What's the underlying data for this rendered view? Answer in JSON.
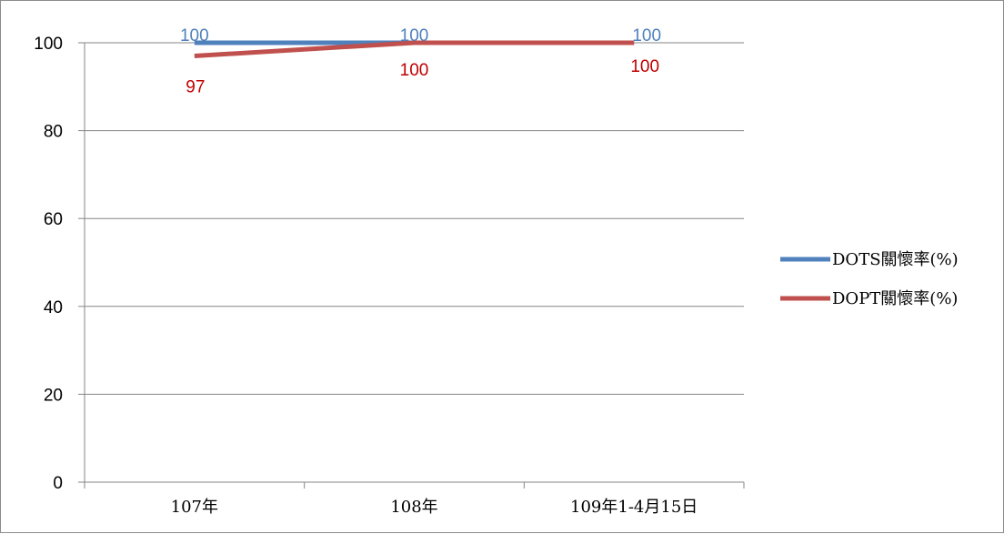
{
  "chart_data": {
    "type": "line",
    "categories": [
      "107年",
      "108年",
      "109年1-4月15日"
    ],
    "series": [
      {
        "name": "DOTS關懷率(%)",
        "values": [
          100,
          100,
          100
        ],
        "color": "#4f81bd",
        "label_color": "#4f81bd"
      },
      {
        "name": "DOPT關懷率(%)",
        "values": [
          97,
          100,
          100
        ],
        "color": "#c0504d",
        "label_color": "#c00000"
      }
    ],
    "title": "",
    "xlabel": "",
    "ylabel": "",
    "ylim": [
      0,
      100
    ],
    "yticks": [
      0,
      20,
      40,
      60,
      80,
      100
    ],
    "grid": true,
    "legend_position": "right"
  }
}
